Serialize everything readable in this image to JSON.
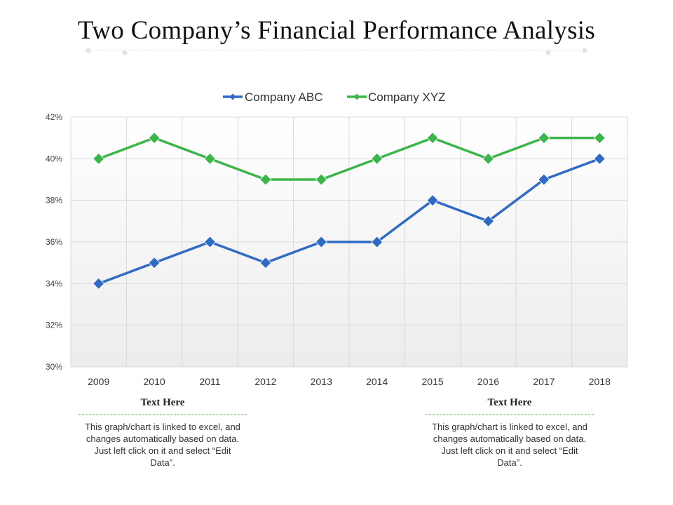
{
  "page": {
    "title": "Two Company’s Financial Performance Analysis"
  },
  "notes": [
    {
      "heading": "Text Here",
      "body": "This graph/chart is linked to excel, and changes automatically based on data. Just left click on it and select “Edit Data”."
    },
    {
      "heading": "Text Here",
      "body": "This graph/chart is linked to excel, and changes automatically based on data. Just left click on it and select “Edit Data”."
    }
  ],
  "chart_data": {
    "type": "line",
    "title": "",
    "xlabel": "",
    "ylabel": "",
    "x": [
      "2009",
      "2010",
      "2011",
      "2012",
      "2013",
      "2014",
      "2015",
      "2016",
      "2017",
      "2018"
    ],
    "ylim": [
      30,
      42
    ],
    "yticks": [
      "30%",
      "32%",
      "34%",
      "36%",
      "38%",
      "40%",
      "42%"
    ],
    "ytick_values": [
      30,
      32,
      34,
      36,
      38,
      40,
      42
    ],
    "grid": true,
    "legend_position": "top",
    "series": [
      {
        "name": "Company ABC",
        "color": "#2f6bc4",
        "marker": "diamond",
        "values": [
          34,
          35,
          36,
          35,
          36,
          36,
          38,
          37,
          39,
          40
        ]
      },
      {
        "name": "Company XYZ",
        "color": "#3cb54a",
        "marker": "diamond",
        "values": [
          40,
          41,
          40,
          39,
          39,
          40,
          41,
          40,
          41,
          41
        ]
      }
    ]
  }
}
